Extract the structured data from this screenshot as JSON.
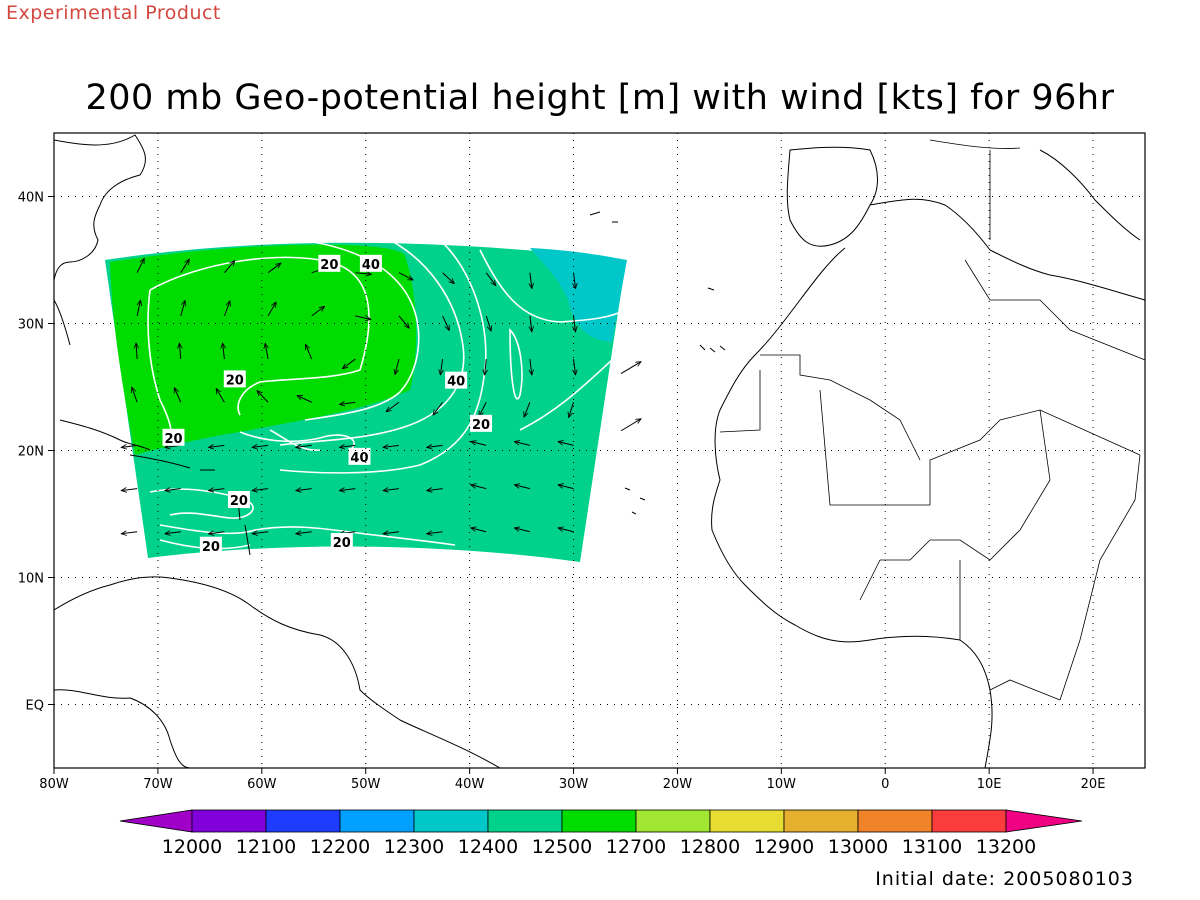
{
  "header": {
    "product_tag": "Experimental Product",
    "title": "200 mb Geo-potential height [m] with wind [kts] for 96hr",
    "initial_date": "Initial date: 2005080103"
  },
  "map": {
    "lon_range": [
      -80,
      25
    ],
    "lat_range": [
      -5,
      45
    ],
    "lon_ticks": [
      {
        "lon": -80,
        "label": "80W"
      },
      {
        "lon": -70,
        "label": "70W"
      },
      {
        "lon": -60,
        "label": "60W"
      },
      {
        "lon": -50,
        "label": "50W"
      },
      {
        "lon": -40,
        "label": "40W"
      },
      {
        "lon": -30,
        "label": "30W"
      },
      {
        "lon": -20,
        "label": "20W"
      },
      {
        "lon": -10,
        "label": "10W"
      },
      {
        "lon": 0,
        "label": "0"
      },
      {
        "lon": 10,
        "label": "10E"
      },
      {
        "lon": 20,
        "label": "20E"
      }
    ],
    "lat_ticks": [
      {
        "lat": 40,
        "label": "40N"
      },
      {
        "lat": 30,
        "label": "30N"
      },
      {
        "lat": 20,
        "label": "20N"
      },
      {
        "lat": 10,
        "label": "10N"
      },
      {
        "lat": 0,
        "label": "EQ"
      }
    ],
    "grid": "dotted",
    "wind_contour_labels": [
      {
        "text": "20",
        "lon": -53.5,
        "lat": 34.7
      },
      {
        "text": "40",
        "lon": -49.5,
        "lat": 34.7
      },
      {
        "text": "20",
        "lon": -62.6,
        "lat": 25.6
      },
      {
        "text": "40",
        "lon": -41.3,
        "lat": 25.5
      },
      {
        "text": "20",
        "lon": -68.5,
        "lat": 21.0
      },
      {
        "text": "20",
        "lon": -38.9,
        "lat": 22.1
      },
      {
        "text": "40",
        "lon": -50.6,
        "lat": 19.5
      },
      {
        "text": "20",
        "lon": -62.2,
        "lat": 16.1
      },
      {
        "text": "20",
        "lon": -52.3,
        "lat": 12.8
      },
      {
        "text": "20",
        "lon": -64.9,
        "lat": 12.5
      }
    ]
  },
  "colorbar": {
    "levels": [
      "12000",
      "12100",
      "12200",
      "12300",
      "12400",
      "12500",
      "12700",
      "12800",
      "12900",
      "13000",
      "13100",
      "13200"
    ],
    "colors": [
      "#a000c8",
      "#8200dc",
      "#1e3cff",
      "#00a0ff",
      "#00c8c8",
      "#00d28c",
      "#00dc00",
      "#a0e632",
      "#e6dc32",
      "#e6af2d",
      "#f08228",
      "#fa3c3c",
      "#f00082"
    ]
  },
  "colors": {
    "green_region": "#00dc00",
    "teal_region": "#00d28c",
    "cyan_region": "#00c8c8",
    "contour": "#ffffff",
    "coast": "#000000"
  }
}
